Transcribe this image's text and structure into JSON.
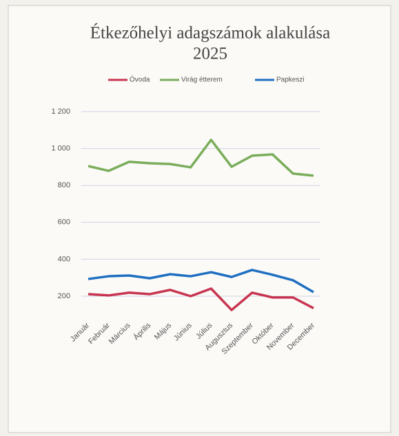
{
  "chart_data": {
    "type": "line",
    "title": "Étkezőhelyi adagszámok alakulása",
    "subtitle": "2025",
    "categories": [
      "Január",
      "Február",
      "Március",
      "Április",
      "Május",
      "Június",
      "Július",
      "Augusztus",
      "Szeptember",
      "Október",
      "November",
      "December"
    ],
    "series": [
      {
        "name": "Óvoda",
        "color": "#c8344f",
        "values": [
          211,
          204,
          219,
          211,
          234,
          200,
          241,
          125,
          219,
          193,
          193,
          135
        ]
      },
      {
        "name": "Virág étterem",
        "color": "#7aad5a",
        "values": [
          905,
          879,
          928,
          920,
          916,
          898,
          1047,
          901,
          961,
          968,
          864,
          853
        ]
      },
      {
        "name": "Papkeszi",
        "color": "#1f6fc1",
        "values": [
          293,
          308,
          312,
          297,
          319,
          308,
          330,
          304,
          342,
          316,
          286,
          222
        ]
      }
    ],
    "ylim": [
      100,
      1200
    ],
    "yticks": [
      200,
      400,
      600,
      800,
      {
        "value": 1000,
        "label": "1 000"
      },
      {
        "value": 1200,
        "label": "1 200"
      }
    ],
    "grid": true,
    "legend": "top"
  }
}
